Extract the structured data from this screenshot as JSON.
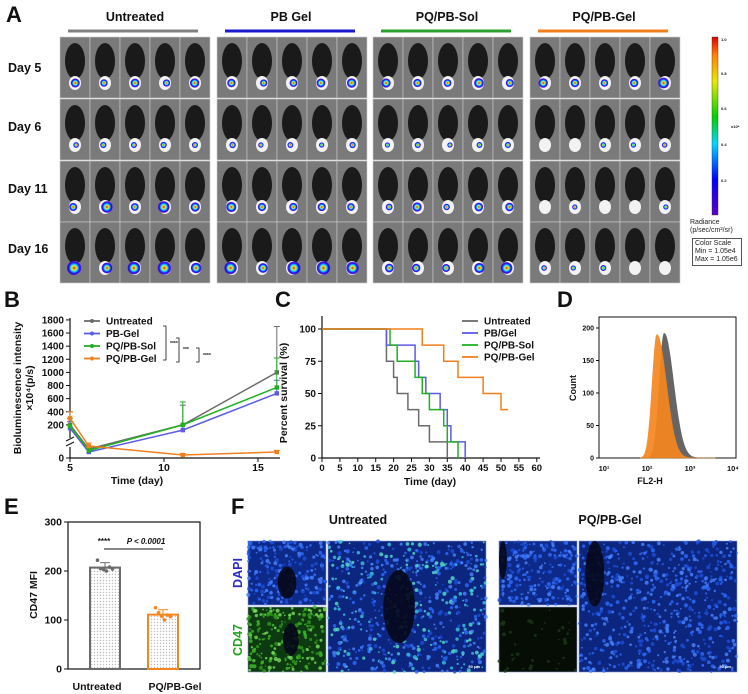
{
  "panel_labels": [
    "A",
    "B",
    "C",
    "D",
    "E",
    "F"
  ],
  "panel_a": {
    "groups": [
      {
        "name": "Untreated",
        "color": "#808080"
      },
      {
        "name": "PB Gel",
        "color": "#1a1acc"
      },
      {
        "name": "PQ/PB-Sol",
        "color": "#2ca02c"
      },
      {
        "name": "PQ/PB-Gel",
        "color": "#f07f1e"
      }
    ],
    "days": [
      "Day 5",
      "Day 6",
      "Day 11",
      "Day 16"
    ],
    "colorbar": {
      "ticks": [
        "1.0",
        "0.8",
        "0.6",
        "0.4",
        "0.2"
      ],
      "unit": "x10⁶",
      "title": "Radiance (p/sec/cm²/sr)",
      "scale_box": "Color Scale Min = 1.05e4 Max = 1.05e6"
    }
  },
  "chart_data": [
    {
      "panel": "B",
      "type": "line",
      "xlabel": "Time (day)",
      "ylabel": "Bioluminescence intensity ×10⁴(p/s)",
      "xlim": [
        5,
        17
      ],
      "ylim": [
        0,
        1800
      ],
      "y_axis_break": true,
      "xticks": [
        "5",
        "10",
        "15"
      ],
      "yticks": [
        "0",
        "200",
        "400",
        "600",
        "800",
        "1000",
        "1200",
        "1400",
        "1600",
        "1800"
      ],
      "x": [
        5,
        6,
        11,
        16
      ],
      "series": [
        {
          "name": "Untreated",
          "color": "#6b6b6b",
          "values": [
            200,
            30,
            200,
            1000
          ],
          "error": [
            200,
            10,
            300,
            700
          ]
        },
        {
          "name": "PB-Gel",
          "color": "#5b5be8",
          "values": [
            150,
            20,
            120,
            680
          ],
          "error": [
            100,
            10,
            80,
            200
          ]
        },
        {
          "name": "PQ/PB-Sol",
          "color": "#22b022",
          "values": [
            180,
            25,
            200,
            770
          ],
          "error": [
            120,
            10,
            350,
            450
          ]
        },
        {
          "name": "PQ/PB-Gel",
          "color": "#f07f1e",
          "values": [
            300,
            40,
            10,
            20
          ],
          "error": [
            100,
            10,
            5,
            5
          ]
        }
      ],
      "significance": [
        "****",
        "***",
        "****"
      ],
      "legend": "top-left"
    },
    {
      "panel": "C",
      "type": "line",
      "xlabel": "Time (day)",
      "ylabel": "Percent survival (%)",
      "xlim": [
        0,
        60
      ],
      "ylim": [
        0,
        100
      ],
      "xticks": [
        "0",
        "5",
        "10",
        "15",
        "20",
        "25",
        "30",
        "35",
        "40",
        "45",
        "50",
        "55",
        "60"
      ],
      "yticks": [
        "0",
        "25",
        "50",
        "75",
        "100"
      ],
      "series": [
        {
          "name": "Untreated",
          "color": "#6b6b6b",
          "steps": [
            [
              0,
              100
            ],
            [
              18,
              75
            ],
            [
              20,
              62.5
            ],
            [
              21,
              50
            ],
            [
              24,
              37.5
            ],
            [
              27,
              25
            ],
            [
              30,
              12.5
            ],
            [
              35,
              0
            ]
          ]
        },
        {
          "name": "PB/Gel",
          "color": "#5b5be8",
          "steps": [
            [
              0,
              100
            ],
            [
              18,
              87.5
            ],
            [
              26,
              75
            ],
            [
              27,
              62.5
            ],
            [
              29,
              50
            ],
            [
              33,
              37.5
            ],
            [
              35,
              25
            ],
            [
              36,
              12.5
            ],
            [
              40,
              0
            ]
          ]
        },
        {
          "name": "PQ/PB-Sol",
          "color": "#22b022",
          "steps": [
            [
              0,
              100
            ],
            [
              19,
              87.5
            ],
            [
              21,
              75
            ],
            [
              26,
              62.5
            ],
            [
              28,
              50
            ],
            [
              30,
              37.5
            ],
            [
              34,
              25
            ],
            [
              35,
              12.5
            ],
            [
              38,
              0
            ]
          ]
        },
        {
          "name": "PQ/PB-Gel",
          "color": "#f07f1e",
          "steps": [
            [
              0,
              100
            ],
            [
              28,
              87.5
            ],
            [
              34,
              75
            ],
            [
              38,
              62.5
            ],
            [
              45,
              50
            ],
            [
              50,
              37.5
            ],
            [
              52,
              37.5
            ]
          ]
        }
      ],
      "legend": "top-right"
    },
    {
      "panel": "D",
      "type": "area",
      "xlabel": "FL2-H",
      "ylabel": "Count",
      "xscale": "log",
      "xlim": [
        10,
        10000
      ],
      "ylim": [
        0,
        220
      ],
      "xticks": [
        "10¹",
        "10²",
        "10³",
        "10⁴"
      ],
      "yticks": [
        "0",
        "50",
        "100",
        "150",
        "200"
      ],
      "series": [
        {
          "color": "#595959",
          "peak_x": 250,
          "peak_count": 192
        },
        {
          "color": "#f5861f",
          "peak_x": 170,
          "peak_count": 190
        }
      ]
    },
    {
      "panel": "E",
      "type": "bar",
      "categories": [
        "Untreated",
        "PQ/PB-Gel"
      ],
      "values": [
        207,
        111
      ],
      "error": [
        10,
        10
      ],
      "points": [
        [
          222,
          205,
          203,
          200,
          208,
          204
        ],
        [
          125,
          115,
          108,
          100,
          110,
          107
        ]
      ],
      "colors": [
        "#6b6b6b",
        "#f5861f"
      ],
      "ylabel": "CD47 MFI",
      "ylim": [
        0,
        300
      ],
      "yticks": [
        "0",
        "100",
        "200",
        "300"
      ],
      "annotation": {
        "stars": "****",
        "p": "P < 0.0001"
      }
    }
  ],
  "panel_f": {
    "groups": [
      "Untreated",
      "PQ/PB-Gel"
    ],
    "channels": [
      {
        "name": "DAPI",
        "color": "#2a2ac8"
      },
      {
        "name": "CD47",
        "color": "#1fa31f"
      }
    ],
    "scale_bar": "50 μm"
  }
}
